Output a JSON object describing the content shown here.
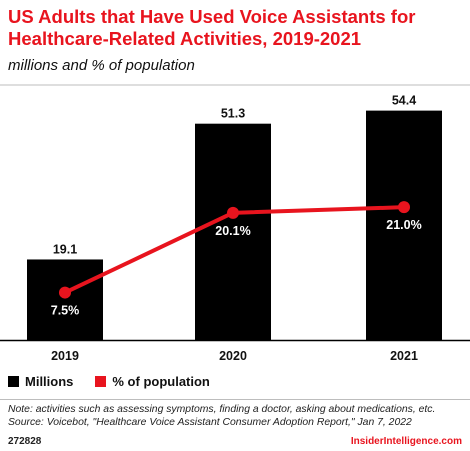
{
  "chart_data": {
    "type": "bar",
    "title": "US Adults that Have Used Voice Assistants for Healthcare-Related Activities, 2019-2021",
    "subtitle": "millions and % of population",
    "categories": [
      "2019",
      "2020",
      "2021"
    ],
    "series": [
      {
        "name": "Millions",
        "type": "bar",
        "values": [
          19.1,
          51.3,
          54.4
        ],
        "labels": [
          "19.1",
          "51.3",
          "54.4"
        ],
        "color": "#000000"
      },
      {
        "name": "% of population",
        "type": "line",
        "values": [
          7.5,
          20.1,
          21.0
        ],
        "labels": [
          "7.5%",
          "20.1%",
          "21.0%"
        ],
        "color": "#e8141e"
      }
    ],
    "ylim": [
      0,
      60
    ],
    "y2lim": [
      0,
      40
    ],
    "grid": false,
    "legend": "bottom-left"
  },
  "note": "Note: activities such as assessing symptoms, finding a doctor, asking about medications, etc.",
  "source": "Source: Voicebot, \"Healthcare Voice Assistant Consumer Adoption Report,\" Jan 7, 2022",
  "chart_id": "272828",
  "brand": "InsiderIntelligence.com"
}
